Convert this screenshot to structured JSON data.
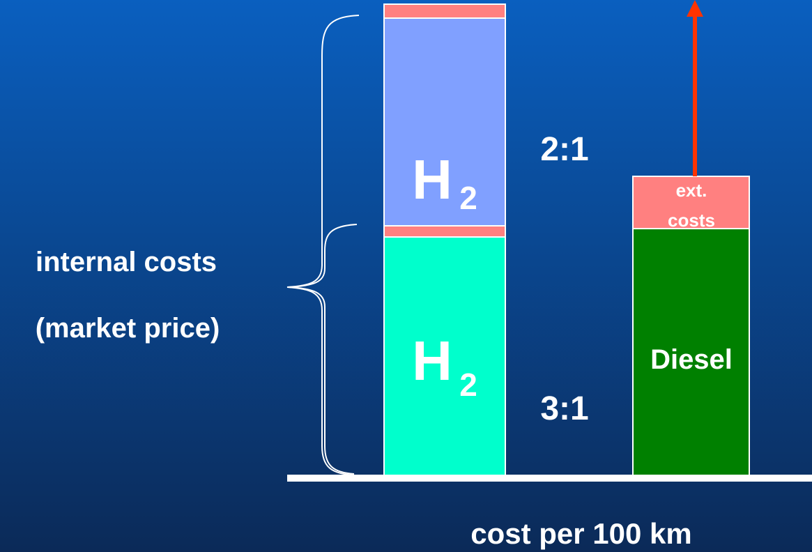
{
  "left_label": {
    "line1": "internal costs",
    "line2": "(market price)"
  },
  "bars": [
    {
      "symbol": "H",
      "subscript": "2",
      "ratio": "2:1"
    },
    {
      "symbol": "H",
      "subscript": "2",
      "ratio": "3:1"
    },
    {
      "label": "Diesel",
      "ext_costs": [
        "ext.",
        "costs"
      ]
    }
  ],
  "axis_label": "cost per 100 km"
}
